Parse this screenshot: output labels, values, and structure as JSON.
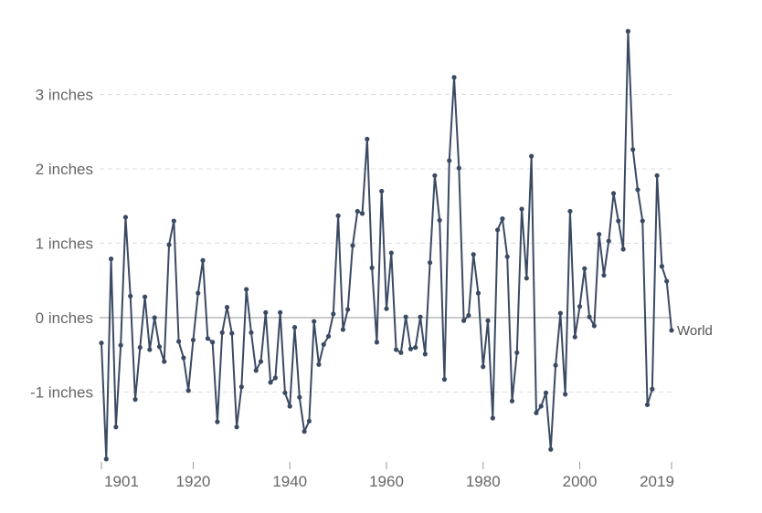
{
  "chart_data": {
    "type": "line",
    "title": "",
    "xlabel": "",
    "ylabel": "",
    "unit_suffix": " inches",
    "x_ticks": [
      1901,
      1920,
      1940,
      1960,
      1980,
      2000,
      2019
    ],
    "x_tick_labels": [
      "1901",
      "1920",
      "1940",
      "1960",
      "1980",
      "2000",
      "2019"
    ],
    "y_ticks": [
      -1,
      0,
      1,
      2,
      3
    ],
    "y_tick_labels": [
      "-1 inches",
      "0 inches",
      "1 inches",
      "2 inches",
      "3 inches"
    ],
    "xlim": [
      1901,
      2019
    ],
    "ylim": [
      -1.9,
      3.85
    ],
    "grid": true,
    "legend": "end-label",
    "series": [
      {
        "name": "World",
        "color": "#3b4a63",
        "x_start": 1901,
        "values": [
          -0.34,
          -1.9,
          0.79,
          -1.47,
          -0.37,
          1.35,
          0.29,
          -1.1,
          -0.4,
          0.28,
          -0.43,
          0.0,
          -0.39,
          -0.59,
          0.98,
          1.3,
          -0.32,
          -0.54,
          -0.98,
          -0.3,
          0.33,
          0.77,
          -0.28,
          -0.33,
          -1.4,
          -0.2,
          0.14,
          -0.21,
          -1.47,
          -0.93,
          0.38,
          -0.2,
          -0.71,
          -0.59,
          0.07,
          -0.87,
          -0.81,
          0.07,
          -1.01,
          -1.19,
          -0.13,
          -1.07,
          -1.53,
          -1.39,
          -0.05,
          -0.63,
          -0.36,
          -0.25,
          0.05,
          1.37,
          -0.16,
          0.11,
          0.97,
          1.43,
          1.4,
          2.4,
          0.67,
          -0.33,
          1.7,
          0.12,
          0.87,
          -0.43,
          -0.47,
          0.01,
          -0.42,
          -0.4,
          0.01,
          -0.49,
          0.74,
          1.91,
          1.31,
          -0.83,
          2.11,
          3.23,
          2.01,
          -0.04,
          0.03,
          0.85,
          0.33,
          -0.66,
          -0.04,
          -1.35,
          1.18,
          1.33,
          0.82,
          -1.12,
          -0.47,
          1.46,
          0.53,
          2.17,
          -1.28,
          -1.19,
          -1.01,
          -1.77,
          -0.64,
          0.06,
          -1.03,
          1.43,
          -0.26,
          0.15,
          0.66,
          0.01,
          -0.11,
          1.12,
          0.57,
          1.03,
          1.67,
          1.3,
          0.92,
          3.85,
          2.26,
          1.72,
          1.3,
          -1.17,
          -0.96,
          1.91,
          0.69,
          0.49,
          -0.17
        ]
      }
    ]
  }
}
